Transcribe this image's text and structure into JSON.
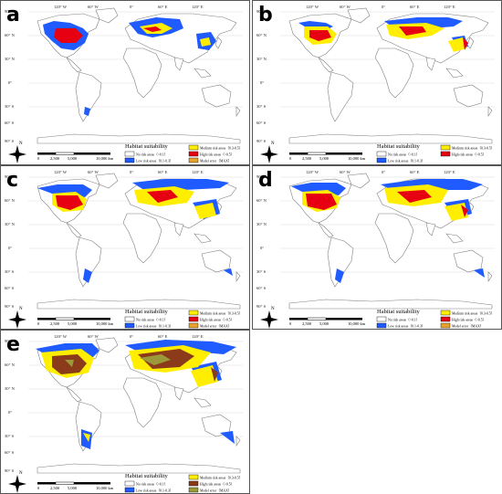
{
  "lat_labels": [
    "90° N",
    "60° N",
    "30° N",
    "0°",
    "30° S",
    "60° S",
    "90° S"
  ],
  "lon_labels": [
    "120° W",
    "60° W",
    "0°",
    "60° E",
    "120° E"
  ],
  "legend": {
    "title": "Habitat suitability",
    "no_risk": "No risk areas（<0.1）",
    "low_risk": "Low risk areas（0.1-0.3）",
    "medium_risk": "Medium risk areas（0.3-0.5）",
    "high_risk": "High risk areas（>0.5）",
    "model_error": "Model error（MAX）"
  },
  "scale_bar": {
    "labels": [
      "0",
      "2,500",
      "5,000",
      "10,000 km"
    ]
  },
  "north_label": "N",
  "colors": {
    "no_risk": "#ffffff",
    "low_risk": "#1f5bff",
    "medium_risk": "#ffee00",
    "high_risk": "#e60012",
    "high_risk_e": "#8b3a1a",
    "model_error": "#e8a32c",
    "model_error_e": "#9a9a3a",
    "land_outline": "#808080"
  },
  "panels": [
    {
      "id": "a",
      "label": "a",
      "has_model_error": true
    },
    {
      "id": "b",
      "label": "b",
      "has_model_error": false
    },
    {
      "id": "c",
      "label": "c",
      "has_model_error": true
    },
    {
      "id": "d",
      "label": "d",
      "has_model_error": true
    },
    {
      "id": "e",
      "label": "e",
      "has_model_error": true
    }
  ]
}
